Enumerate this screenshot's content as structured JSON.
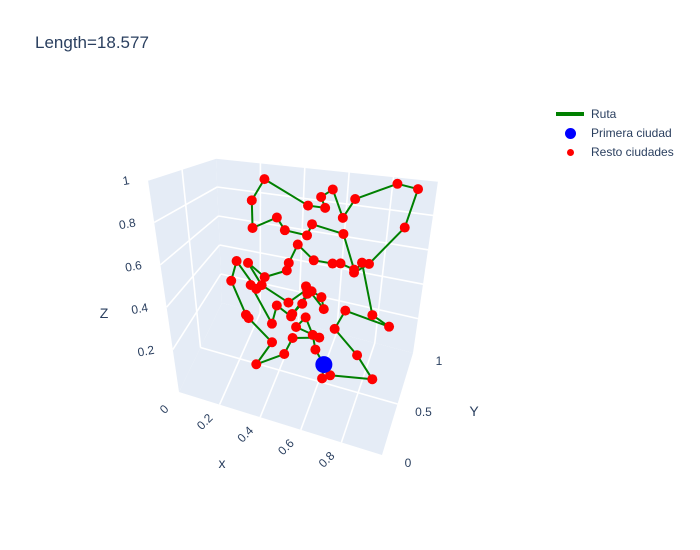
{
  "title": "Length=18.577",
  "legend": {
    "items": [
      {
        "label": "Ruta",
        "kind": "line",
        "color": "#008000"
      },
      {
        "label": "Primera ciudad",
        "kind": "marker-large",
        "color": "#0000ff"
      },
      {
        "label": "Resto ciudades",
        "kind": "marker-small",
        "color": "#ff0000"
      }
    ]
  },
  "chart_data": {
    "type": "scatter3d",
    "title": "Length=18.577",
    "xlabel": "x",
    "ylabel": "Y",
    "zlabel": "Z",
    "x_ticks": [
      "0",
      "0.2",
      "0.4",
      "0.6",
      "0.8"
    ],
    "y_ticks": [
      "0",
      "0.5",
      "1"
    ],
    "z_ticks": [
      "0.2",
      "0.4",
      "0.6",
      "0.8",
      "1"
    ],
    "xlim": [
      0,
      1
    ],
    "ylim": [
      0,
      1
    ],
    "zlim": [
      0,
      1
    ],
    "colors": {
      "route": "#008000",
      "first": "#0000ff",
      "rest": "#ff0000",
      "scene_bg": "#e5ecf6",
      "grid": "#ffffff"
    },
    "first_city": [
      0.66,
      0.33,
      0.17
    ],
    "route": [
      [
        0.66,
        0.33,
        0.17
      ],
      [
        0.64,
        0.38,
        0.08
      ],
      [
        0.7,
        0.28,
        0.15
      ],
      [
        0.94,
        0.1,
        0.25
      ],
      [
        0.8,
        0.45,
        0.2
      ],
      [
        0.7,
        0.4,
        0.32
      ],
      [
        0.73,
        0.5,
        0.38
      ],
      [
        0.92,
        0.62,
        0.3
      ],
      [
        0.88,
        0.4,
        0.42
      ],
      [
        0.88,
        0.18,
        0.7
      ],
      [
        0.81,
        0.32,
        0.62
      ],
      [
        0.86,
        0.4,
        0.65
      ],
      [
        0.97,
        0.6,
        0.8
      ],
      [
        0.99,
        0.71,
        0.98
      ],
      [
        0.86,
        0.85,
        0.98
      ],
      [
        0.72,
        0.68,
        0.9
      ],
      [
        0.76,
        0.32,
        0.86
      ],
      [
        0.64,
        0.6,
        0.95
      ],
      [
        0.58,
        0.63,
        0.9
      ],
      [
        0.62,
        0.55,
        0.86
      ],
      [
        0.54,
        0.56,
        0.86
      ],
      [
        0.3,
        0.72,
        0.95
      ],
      [
        0.28,
        0.58,
        0.85
      ],
      [
        0.3,
        0.5,
        0.72
      ],
      [
        0.4,
        0.55,
        0.78
      ],
      [
        0.47,
        0.42,
        0.75
      ],
      [
        0.55,
        0.5,
        0.72
      ],
      [
        0.6,
        0.4,
        0.8
      ],
      [
        0.78,
        0.25,
        0.8
      ],
      [
        0.78,
        0.45,
        0.6
      ],
      [
        0.7,
        0.52,
        0.6
      ],
      [
        0.63,
        0.66,
        0.55
      ],
      [
        0.58,
        0.5,
        0.6
      ],
      [
        0.53,
        0.41,
        0.69
      ],
      [
        0.45,
        0.55,
        0.55
      ],
      [
        0.42,
        0.63,
        0.48
      ],
      [
        0.3,
        0.68,
        0.4
      ],
      [
        0.27,
        0.5,
        0.53
      ],
      [
        0.34,
        0.46,
        0.44
      ],
      [
        0.48,
        0.4,
        0.4
      ],
      [
        0.6,
        0.28,
        0.52
      ],
      [
        0.61,
        0.22,
        0.55
      ],
      [
        0.66,
        0.35,
        0.42
      ],
      [
        0.62,
        0.48,
        0.43
      ],
      [
        0.58,
        0.45,
        0.46
      ],
      [
        0.48,
        0.47,
        0.32
      ],
      [
        0.5,
        0.6,
        0.33
      ],
      [
        0.52,
        0.62,
        0.38
      ],
      [
        0.44,
        0.62,
        0.24
      ],
      [
        0.38,
        0.58,
        0.3
      ],
      [
        0.36,
        0.55,
        0.21
      ],
      [
        0.22,
        0.72,
        0.32
      ],
      [
        0.24,
        0.75,
        0.29
      ],
      [
        0.14,
        0.78,
        0.42
      ],
      [
        0.13,
        0.7,
        0.33
      ],
      [
        0.21,
        0.64,
        0.18
      ],
      [
        0.23,
        0.61,
        0.18
      ],
      [
        0.38,
        0.45,
        0.16
      ],
      [
        0.33,
        0.3,
        0.1
      ],
      [
        0.45,
        0.4,
        0.14
      ],
      [
        0.47,
        0.51,
        0.18
      ],
      [
        0.6,
        0.52,
        0.21
      ],
      [
        0.52,
        0.37,
        0.3
      ],
      [
        0.57,
        0.36,
        0.36
      ],
      [
        0.6,
        0.37,
        0.28
      ],
      [
        0.62,
        0.33,
        0.23
      ],
      [
        0.66,
        0.33,
        0.17
      ]
    ],
    "other_cities": [
      [
        0.64,
        0.38,
        0.08
      ],
      [
        0.7,
        0.28,
        0.15
      ],
      [
        0.94,
        0.1,
        0.25
      ],
      [
        0.8,
        0.45,
        0.2
      ],
      [
        0.7,
        0.4,
        0.32
      ],
      [
        0.73,
        0.5,
        0.38
      ],
      [
        0.92,
        0.62,
        0.3
      ],
      [
        0.88,
        0.4,
        0.42
      ],
      [
        0.88,
        0.18,
        0.7
      ],
      [
        0.81,
        0.32,
        0.62
      ],
      [
        0.86,
        0.4,
        0.65
      ],
      [
        0.97,
        0.6,
        0.8
      ],
      [
        0.99,
        0.71,
        0.98
      ],
      [
        0.86,
        0.85,
        0.98
      ],
      [
        0.72,
        0.68,
        0.9
      ],
      [
        0.76,
        0.32,
        0.86
      ],
      [
        0.64,
        0.6,
        0.95
      ],
      [
        0.58,
        0.63,
        0.9
      ],
      [
        0.62,
        0.55,
        0.86
      ],
      [
        0.54,
        0.56,
        0.86
      ],
      [
        0.3,
        0.72,
        0.95
      ],
      [
        0.28,
        0.58,
        0.85
      ],
      [
        0.3,
        0.5,
        0.72
      ],
      [
        0.4,
        0.55,
        0.78
      ],
      [
        0.47,
        0.42,
        0.75
      ],
      [
        0.55,
        0.5,
        0.72
      ],
      [
        0.6,
        0.4,
        0.8
      ],
      [
        0.78,
        0.25,
        0.8
      ],
      [
        0.78,
        0.45,
        0.6
      ],
      [
        0.7,
        0.52,
        0.6
      ],
      [
        0.63,
        0.66,
        0.55
      ],
      [
        0.58,
        0.5,
        0.6
      ],
      [
        0.53,
        0.41,
        0.69
      ],
      [
        0.45,
        0.55,
        0.55
      ],
      [
        0.42,
        0.63,
        0.48
      ],
      [
        0.3,
        0.68,
        0.4
      ],
      [
        0.27,
        0.5,
        0.53
      ],
      [
        0.34,
        0.46,
        0.44
      ],
      [
        0.48,
        0.4,
        0.4
      ],
      [
        0.6,
        0.28,
        0.52
      ],
      [
        0.61,
        0.22,
        0.55
      ],
      [
        0.66,
        0.35,
        0.42
      ],
      [
        0.62,
        0.48,
        0.43
      ],
      [
        0.58,
        0.45,
        0.46
      ],
      [
        0.48,
        0.47,
        0.32
      ],
      [
        0.5,
        0.6,
        0.33
      ],
      [
        0.52,
        0.62,
        0.38
      ],
      [
        0.44,
        0.62,
        0.24
      ],
      [
        0.38,
        0.58,
        0.3
      ],
      [
        0.36,
        0.55,
        0.21
      ],
      [
        0.22,
        0.72,
        0.32
      ],
      [
        0.24,
        0.75,
        0.29
      ],
      [
        0.14,
        0.78,
        0.42
      ],
      [
        0.13,
        0.7,
        0.33
      ],
      [
        0.21,
        0.64,
        0.18
      ],
      [
        0.23,
        0.61,
        0.18
      ],
      [
        0.38,
        0.45,
        0.16
      ],
      [
        0.33,
        0.3,
        0.1
      ],
      [
        0.45,
        0.4,
        0.14
      ],
      [
        0.47,
        0.51,
        0.18
      ],
      [
        0.6,
        0.52,
        0.21
      ],
      [
        0.52,
        0.37,
        0.3
      ],
      [
        0.57,
        0.36,
        0.36
      ],
      [
        0.6,
        0.37,
        0.28
      ],
      [
        0.62,
        0.33,
        0.23
      ]
    ]
  }
}
